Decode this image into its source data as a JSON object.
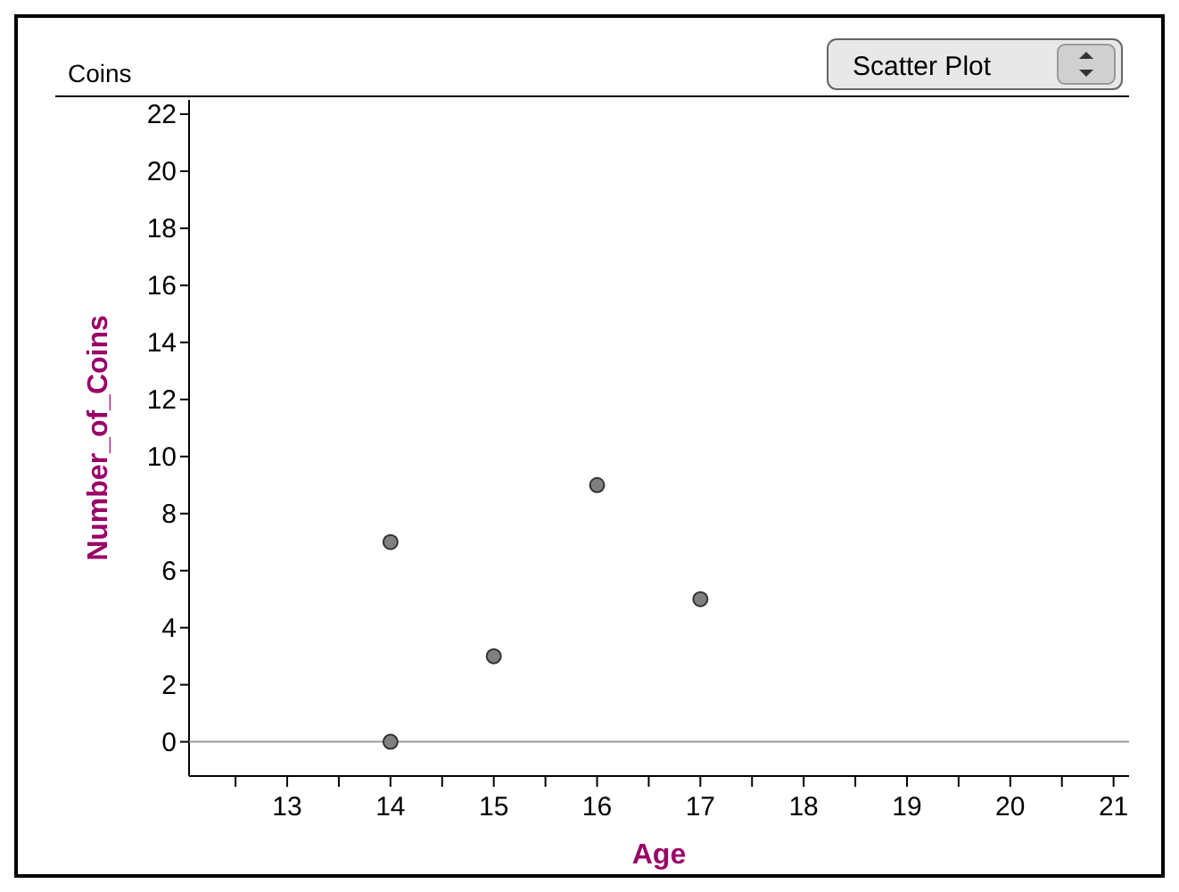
{
  "chart_data": {
    "type": "scatter",
    "title": "Coins",
    "xlabel": "Age",
    "ylabel": "Number_of_Coins",
    "annotations": [
      "Scatter Plot"
    ],
    "x": [
      14,
      14,
      15,
      16,
      17
    ],
    "series": [
      {
        "color": "#808080",
        "values": [
          7,
          0,
          3,
          9,
          5
        ]
      }
    ],
    "xlim": [
      12.05,
      21.15
    ],
    "xticks": [
      {
        "value": 12.5,
        "label": null
      },
      13,
      {
        "value": 13.5,
        "label": null
      },
      14,
      {
        "value": 14.5,
        "label": null
      },
      15,
      {
        "value": 15.5,
        "label": null
      },
      16,
      {
        "value": 16.5,
        "label": null
      },
      17,
      {
        "value": 17.5,
        "label": null
      },
      18,
      {
        "value": 18.5,
        "label": null
      },
      19,
      {
        "value": 19.5,
        "label": null
      },
      20,
      {
        "value": 20.5,
        "label": null
      },
      21
    ],
    "ylim": [
      -1.2,
      22.5
    ],
    "yticks": [
      0,
      2,
      4,
      6,
      8,
      10,
      12,
      14,
      16,
      18,
      20,
      22
    ],
    "ref_lines": [
      {
        "axis": "y",
        "value": 0,
        "color": "#999999"
      }
    ],
    "grid": false,
    "marker": "circle"
  }
}
